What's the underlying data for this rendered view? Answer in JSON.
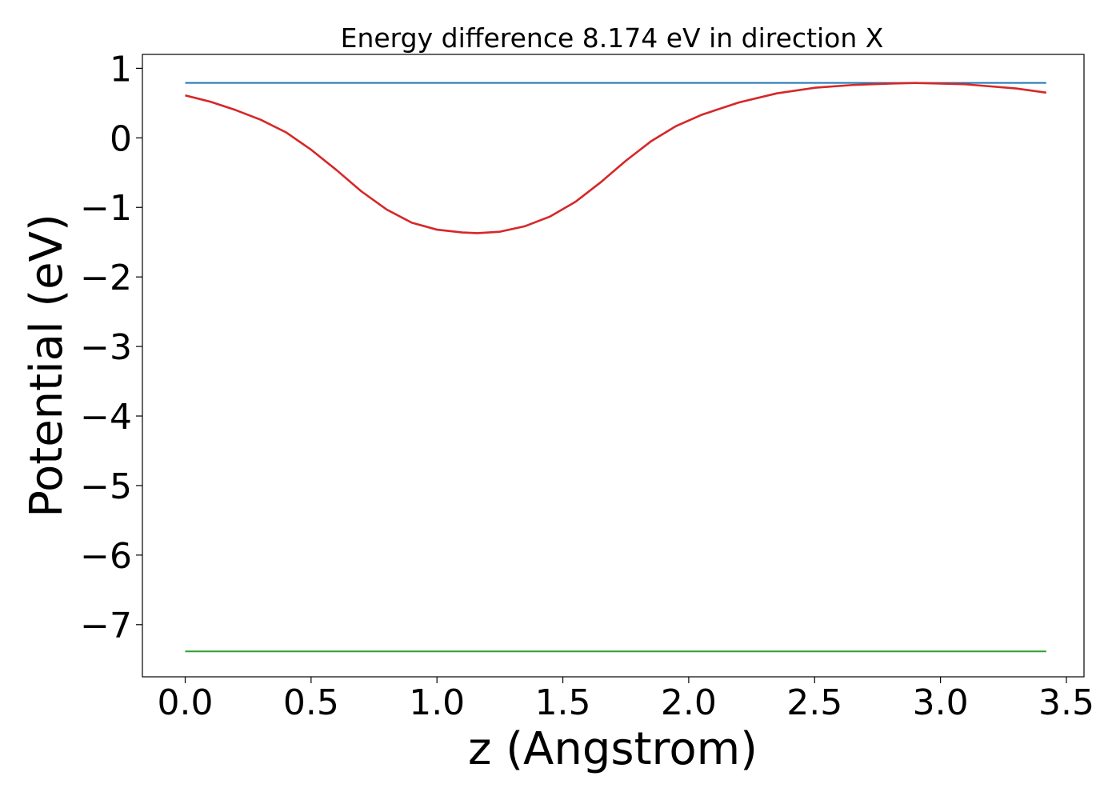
{
  "chart_data": {
    "type": "line",
    "title": "Energy difference 8.174 eV in direction X",
    "xlabel": "z (Angstrom)",
    "ylabel": "Potential (eV)",
    "xlim": [
      -0.17,
      3.57
    ],
    "ylim": [
      -7.75,
      1.2
    ],
    "x_ticks": [
      0.0,
      0.5,
      1.0,
      1.5,
      2.0,
      2.5,
      3.0,
      3.5
    ],
    "x_tick_labels": [
      "0.0",
      "0.5",
      "1.0",
      "1.5",
      "2.0",
      "2.5",
      "3.0",
      "3.5"
    ],
    "y_ticks": [
      1,
      0,
      -1,
      -2,
      -3,
      -4,
      -5,
      -6,
      -7
    ],
    "y_tick_labels": [
      "1",
      "0",
      "−1",
      "−2",
      "−3",
      "−4",
      "−5",
      "−6",
      "−7"
    ],
    "grid": false,
    "series": [
      {
        "color": "#1f77b4",
        "x": [
          0.0,
          3.42
        ],
        "y": [
          0.79,
          0.79
        ]
      },
      {
        "color": "#2ca02c",
        "x": [
          0.0,
          3.42
        ],
        "y": [
          -7.385,
          -7.385
        ]
      },
      {
        "color": "#d62728",
        "x": [
          0.0,
          0.1,
          0.2,
          0.3,
          0.4,
          0.5,
          0.6,
          0.7,
          0.8,
          0.9,
          1.0,
          1.1,
          1.16,
          1.25,
          1.35,
          1.45,
          1.55,
          1.65,
          1.75,
          1.85,
          1.95,
          2.05,
          2.2,
          2.35,
          2.5,
          2.65,
          2.8,
          2.9,
          3.0,
          3.1,
          3.2,
          3.3,
          3.42
        ],
        "y": [
          0.61,
          0.52,
          0.4,
          0.26,
          0.08,
          -0.17,
          -0.46,
          -0.77,
          -1.03,
          -1.22,
          -1.32,
          -1.36,
          -1.37,
          -1.35,
          -1.27,
          -1.13,
          -0.92,
          -0.64,
          -0.33,
          -0.05,
          0.17,
          0.33,
          0.51,
          0.64,
          0.72,
          0.76,
          0.78,
          0.79,
          0.78,
          0.77,
          0.74,
          0.71,
          0.65
        ]
      }
    ]
  }
}
